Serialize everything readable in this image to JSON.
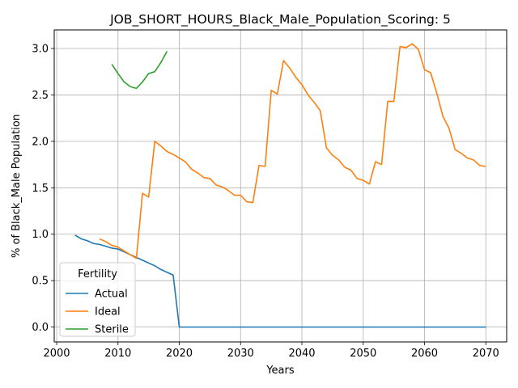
{
  "chart_data": {
    "type": "line",
    "title": "JOB_SHORT_HOURS_Black_Male_Population_Scoring: 5",
    "xlabel": "Years",
    "ylabel": "% of Black_Male Population",
    "xlim": [
      1999.6,
      2073.4
    ],
    "ylim": [
      -0.16,
      3.2
    ],
    "xticks": [
      2000,
      2010,
      2020,
      2030,
      2040,
      2050,
      2060,
      2070
    ],
    "yticks": [
      0.0,
      0.5,
      1.0,
      1.5,
      2.0,
      2.5,
      3.0
    ],
    "xtick_labels": [
      "2000",
      "2010",
      "2020",
      "2030",
      "2040",
      "2050",
      "2060",
      "2070"
    ],
    "ytick_labels": [
      "0.0",
      "0.5",
      "1.0",
      "1.5",
      "2.0",
      "2.5",
      "3.0"
    ],
    "grid": true,
    "legend": {
      "title": "Fertility",
      "placement": "lower-left"
    },
    "series": [
      {
        "name": "Actual",
        "color": "#1f77b4",
        "x": [
          2003,
          2004,
          2005,
          2006,
          2007,
          2008,
          2009,
          2010,
          2011,
          2012,
          2013,
          2014,
          2015,
          2016,
          2017,
          2018,
          2019,
          2020,
          2025,
          2030,
          2035,
          2040,
          2045,
          2050,
          2055,
          2060,
          2065,
          2070
        ],
        "y": [
          0.99,
          0.95,
          0.93,
          0.9,
          0.89,
          0.87,
          0.85,
          0.84,
          0.81,
          0.78,
          0.75,
          0.72,
          0.69,
          0.66,
          0.62,
          0.59,
          0.56,
          0.0,
          0.0,
          0.0,
          0.0,
          0.0,
          0.0,
          0.0,
          0.0,
          0.0,
          0.0,
          0.0
        ]
      },
      {
        "name": "Ideal",
        "color": "#ff7f0e",
        "x": [
          2007,
          2008,
          2009,
          2010,
          2011,
          2012,
          2013,
          2014,
          2015,
          2016,
          2017,
          2018,
          2019,
          2020,
          2021,
          2022,
          2023,
          2024,
          2025,
          2026,
          2027,
          2028,
          2029,
          2030,
          2031,
          2032,
          2033,
          2034,
          2035,
          2036,
          2037,
          2038,
          2039,
          2040,
          2041,
          2042,
          2043,
          2044,
          2045,
          2046,
          2047,
          2048,
          2049,
          2050,
          2051,
          2052,
          2053,
          2054,
          2055,
          2056,
          2057,
          2058,
          2059,
          2060,
          2061,
          2062,
          2063,
          2064,
          2065,
          2066,
          2067,
          2068,
          2069,
          2070
        ],
        "y": [
          0.95,
          0.92,
          0.88,
          0.86,
          0.82,
          0.78,
          0.74,
          1.44,
          1.4,
          2.0,
          1.95,
          1.89,
          1.86,
          1.82,
          1.78,
          1.7,
          1.66,
          1.61,
          1.6,
          1.53,
          1.51,
          1.47,
          1.42,
          1.42,
          1.35,
          1.34,
          1.74,
          1.73,
          2.55,
          2.51,
          2.87,
          2.79,
          2.69,
          2.61,
          2.5,
          2.42,
          2.33,
          1.93,
          1.85,
          1.8,
          1.72,
          1.69,
          1.6,
          1.58,
          1.54,
          1.78,
          1.75,
          2.43,
          2.43,
          3.02,
          3.01,
          3.05,
          2.99,
          2.77,
          2.74,
          2.52,
          2.27,
          2.14,
          1.91,
          1.87,
          1.82,
          1.8,
          1.74,
          1.73
        ]
      },
      {
        "name": "Sterile",
        "color": "#2ca02c",
        "x": [
          2009,
          2010,
          2011,
          2012,
          2013,
          2014,
          2015,
          2016,
          2017,
          2018
        ],
        "y": [
          2.83,
          2.73,
          2.64,
          2.59,
          2.57,
          2.64,
          2.73,
          2.75,
          2.85,
          2.97
        ]
      }
    ]
  }
}
